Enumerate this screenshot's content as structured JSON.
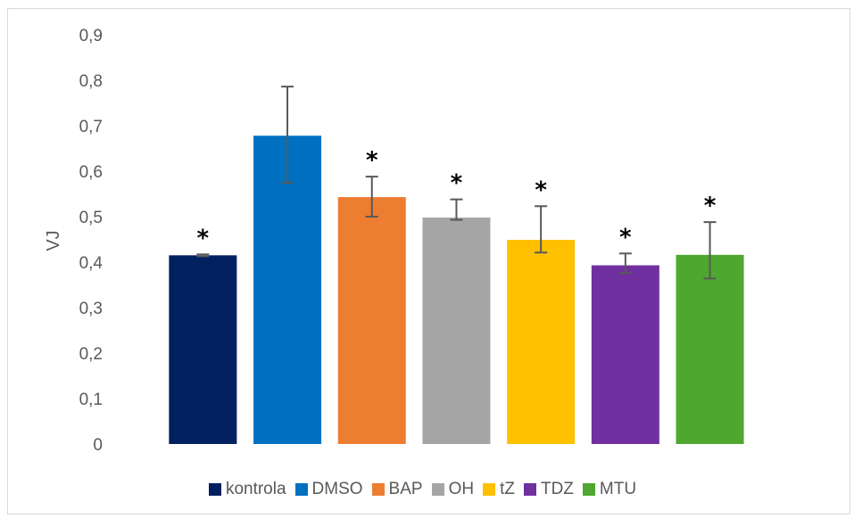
{
  "chart_data": {
    "type": "bar",
    "title": "",
    "xlabel": "",
    "ylabel": "VJ",
    "ylim": [
      0,
      0.9
    ],
    "yticks": [
      "0",
      "0,1",
      "0,2",
      "0,3",
      "0,4",
      "0,5",
      "0,6",
      "0,7",
      "0,8",
      "0,9"
    ],
    "grid": false,
    "legend_position": "bottom",
    "categories": [
      "kontrola",
      "DMSO",
      "BAP",
      "OH",
      "tZ",
      "TDZ",
      "MTU"
    ],
    "values": [
      0.415,
      0.678,
      0.543,
      0.498,
      0.449,
      0.393,
      0.416
    ],
    "error_low": [
      0.413,
      0.575,
      0.5,
      0.493,
      0.421,
      0.376,
      0.364
    ],
    "error_high": [
      0.417,
      0.786,
      0.588,
      0.538,
      0.523,
      0.419,
      0.488
    ],
    "significance": [
      "*",
      "",
      "*",
      "*",
      "*",
      "*",
      "*"
    ],
    "colors": [
      "#002060",
      "#0070C0",
      "#ED7D31",
      "#A5A5A5",
      "#FFC000",
      "#7030A0",
      "#4EA72E"
    ],
    "error_bar_color": "#595959"
  }
}
